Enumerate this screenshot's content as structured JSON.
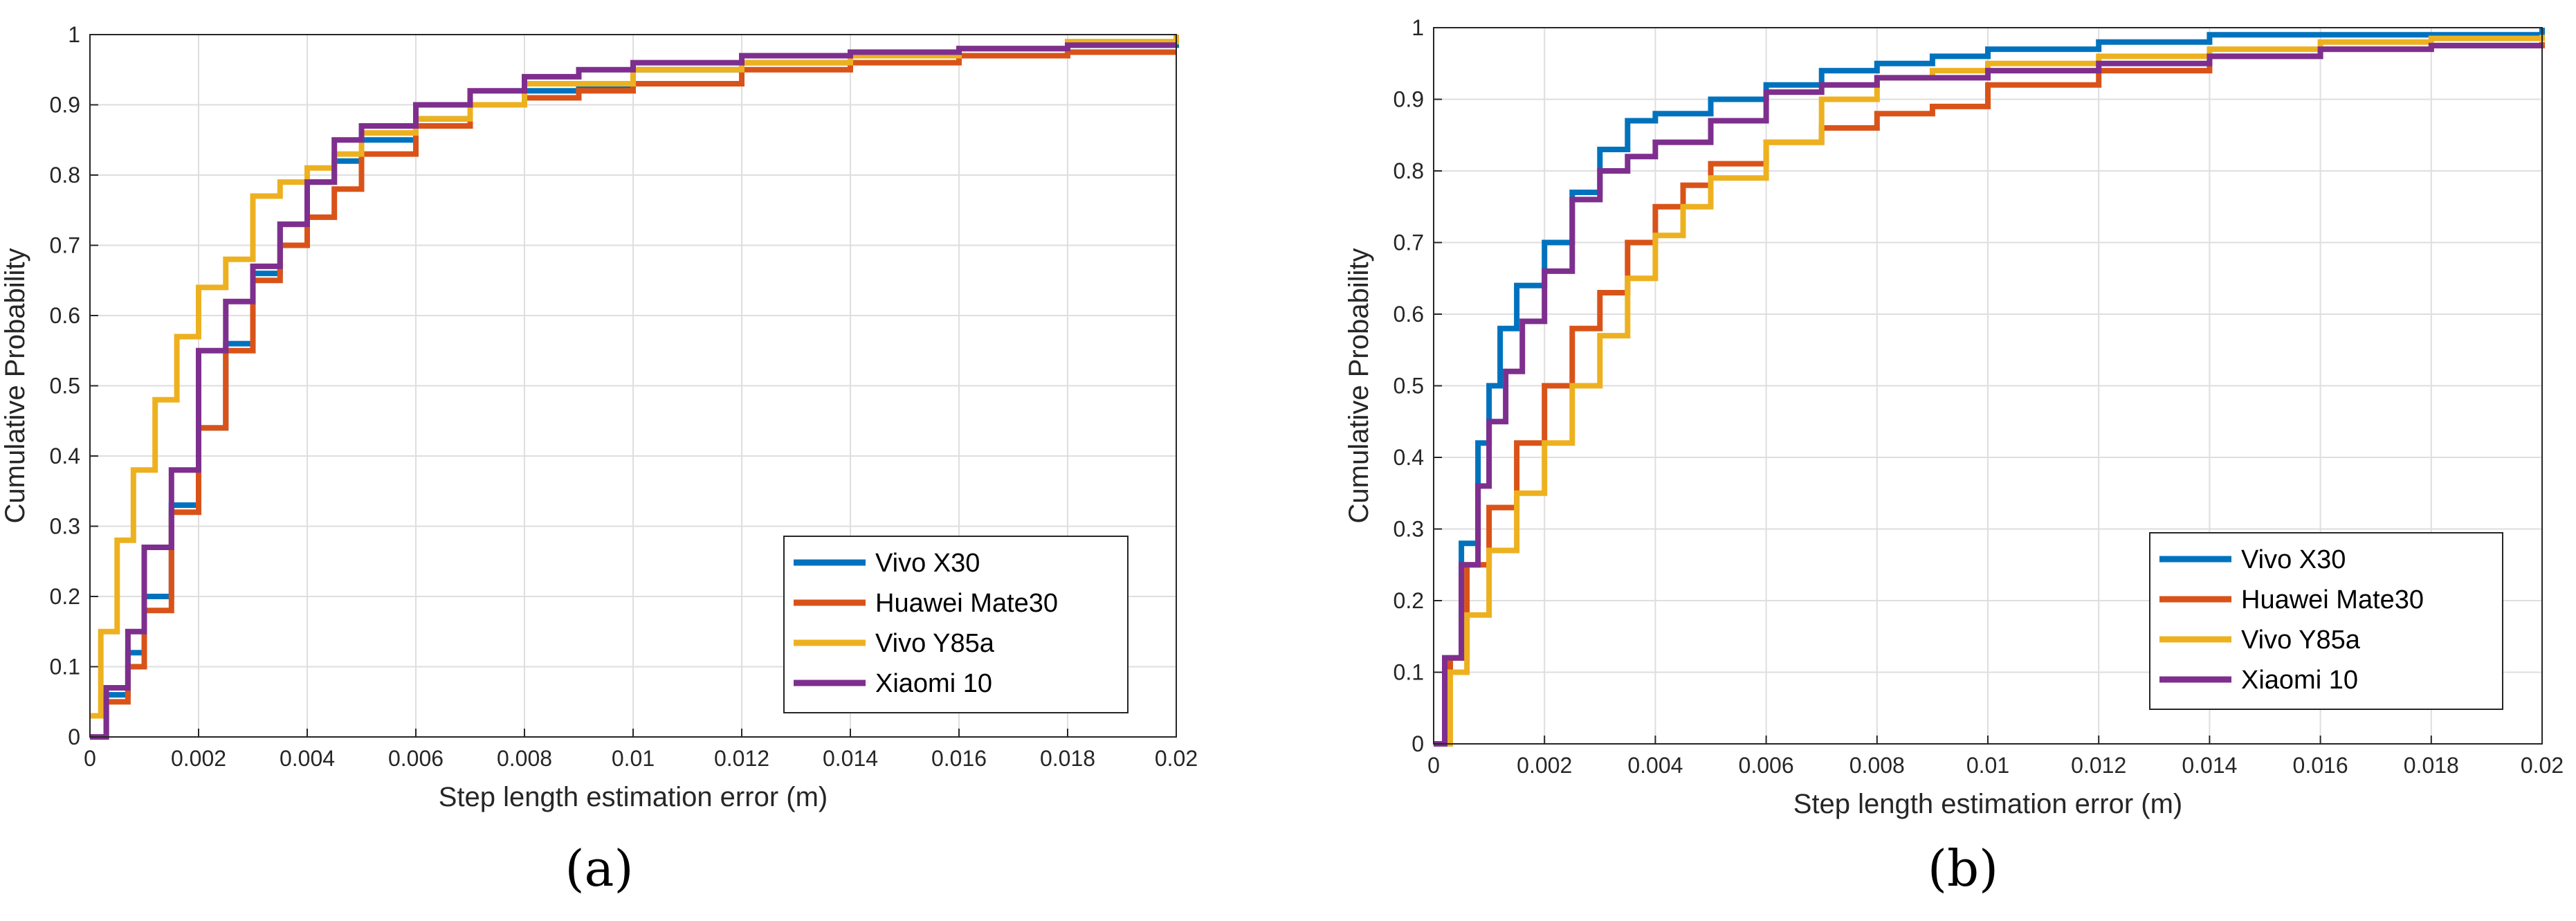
{
  "colors": {
    "Vivo X30": "#0072BD",
    "Huawei Mate30": "#D95319",
    "Vivo Y85a": "#EDB120",
    "Xiaomi 10": "#7E2F8E"
  },
  "chart_data": [
    {
      "type": "line",
      "panel_label": "(a)",
      "xlabel": "Step length estimation error (m)",
      "ylabel": "Cumulative Probability",
      "xlim": [
        0,
        0.02
      ],
      "ylim": [
        0,
        1
      ],
      "grid": true,
      "xticks": [
        "0",
        "0.002",
        "0.004",
        "0.006",
        "0.008",
        "0.01",
        "0.012",
        "0.014",
        "0.016",
        "0.018",
        "0.02"
      ],
      "yticks": [
        "0",
        "0.1",
        "0.2",
        "0.3",
        "0.4",
        "0.5",
        "0.6",
        "0.7",
        "0.8",
        "0.9",
        "1"
      ],
      "legend_location": "lower-right",
      "series": [
        {
          "name": "Vivo X30",
          "x": [
            0,
            0.0003,
            0.0007,
            0.001,
            0.0015,
            0.002,
            0.0025,
            0.003,
            0.0035,
            0.004,
            0.0045,
            0.005,
            0.006,
            0.007,
            0.008,
            0.009,
            0.01,
            0.012,
            0.014,
            0.016,
            0.018,
            0.02
          ],
          "y": [
            0,
            0.06,
            0.12,
            0.2,
            0.33,
            0.44,
            0.56,
            0.66,
            0.73,
            0.79,
            0.82,
            0.85,
            0.88,
            0.9,
            0.92,
            0.925,
            0.95,
            0.96,
            0.97,
            0.98,
            0.985,
            0.99
          ]
        },
        {
          "name": "Huawei Mate30",
          "x": [
            0,
            0.0003,
            0.0007,
            0.001,
            0.0015,
            0.002,
            0.0025,
            0.003,
            0.0035,
            0.004,
            0.0045,
            0.005,
            0.006,
            0.007,
            0.008,
            0.009,
            0.01,
            0.012,
            0.014,
            0.016,
            0.018,
            0.02
          ],
          "y": [
            0,
            0.05,
            0.1,
            0.18,
            0.32,
            0.44,
            0.55,
            0.65,
            0.7,
            0.74,
            0.78,
            0.83,
            0.87,
            0.9,
            0.91,
            0.92,
            0.93,
            0.95,
            0.96,
            0.97,
            0.975,
            0.975
          ]
        },
        {
          "name": "Vivo Y85a",
          "x": [
            0,
            0.0002,
            0.0005,
            0.0008,
            0.0012,
            0.0016,
            0.002,
            0.0025,
            0.003,
            0.0035,
            0.004,
            0.0045,
            0.005,
            0.006,
            0.007,
            0.008,
            0.01,
            0.012,
            0.014,
            0.016,
            0.018,
            0.02
          ],
          "y": [
            0.03,
            0.15,
            0.28,
            0.38,
            0.48,
            0.57,
            0.64,
            0.68,
            0.77,
            0.79,
            0.81,
            0.83,
            0.86,
            0.88,
            0.9,
            0.93,
            0.95,
            0.96,
            0.97,
            0.98,
            0.99,
            1.0
          ]
        },
        {
          "name": "Xiaomi 10",
          "x": [
            0,
            0.0003,
            0.0007,
            0.001,
            0.0015,
            0.002,
            0.0025,
            0.003,
            0.0035,
            0.004,
            0.0045,
            0.005,
            0.006,
            0.007,
            0.008,
            0.009,
            0.01,
            0.012,
            0.014,
            0.016,
            0.018,
            0.02
          ],
          "y": [
            0,
            0.07,
            0.15,
            0.27,
            0.38,
            0.55,
            0.62,
            0.67,
            0.73,
            0.79,
            0.85,
            0.87,
            0.9,
            0.92,
            0.94,
            0.95,
            0.96,
            0.97,
            0.975,
            0.98,
            0.985,
            0.985
          ]
        }
      ]
    },
    {
      "type": "line",
      "panel_label": "(b)",
      "xlabel": "Step length estimation error (m)",
      "ylabel": "Cumulative Probability",
      "xlim": [
        0,
        0.02
      ],
      "ylim": [
        0,
        1
      ],
      "grid": true,
      "xticks": [
        "0",
        "0.002",
        "0.004",
        "0.006",
        "0.008",
        "0.01",
        "0.012",
        "0.014",
        "0.016",
        "0.018",
        "0.02"
      ],
      "yticks": [
        "0",
        "0.1",
        "0.2",
        "0.3",
        "0.4",
        "0.5",
        "0.6",
        "0.7",
        "0.8",
        "0.9",
        "1"
      ],
      "legend_location": "lower-right",
      "series": [
        {
          "name": "Vivo X30",
          "x": [
            0,
            0.0002,
            0.0005,
            0.0008,
            0.001,
            0.0012,
            0.0015,
            0.002,
            0.0025,
            0.003,
            0.0035,
            0.004,
            0.005,
            0.006,
            0.007,
            0.008,
            0.009,
            0.01,
            0.012,
            0.014,
            0.016,
            0.02
          ],
          "y": [
            0,
            0.12,
            0.28,
            0.42,
            0.5,
            0.58,
            0.64,
            0.7,
            0.77,
            0.83,
            0.87,
            0.88,
            0.9,
            0.92,
            0.94,
            0.95,
            0.96,
            0.97,
            0.98,
            0.99,
            0.99,
            1.0
          ]
        },
        {
          "name": "Huawei Mate30",
          "x": [
            0,
            0.0003,
            0.0006,
            0.001,
            0.0015,
            0.002,
            0.0025,
            0.003,
            0.0035,
            0.004,
            0.0045,
            0.005,
            0.006,
            0.007,
            0.008,
            0.009,
            0.01,
            0.012,
            0.014,
            0.016,
            0.018,
            0.02
          ],
          "y": [
            0,
            0.12,
            0.25,
            0.33,
            0.42,
            0.5,
            0.58,
            0.63,
            0.7,
            0.75,
            0.78,
            0.81,
            0.84,
            0.86,
            0.88,
            0.89,
            0.92,
            0.94,
            0.96,
            0.97,
            0.975,
            0.98
          ]
        },
        {
          "name": "Vivo Y85a",
          "x": [
            0,
            0.0003,
            0.0006,
            0.001,
            0.0015,
            0.002,
            0.0025,
            0.003,
            0.0035,
            0.004,
            0.0045,
            0.005,
            0.006,
            0.007,
            0.008,
            0.009,
            0.01,
            0.012,
            0.014,
            0.016,
            0.018,
            0.02
          ],
          "y": [
            0,
            0.1,
            0.18,
            0.27,
            0.35,
            0.42,
            0.5,
            0.57,
            0.65,
            0.71,
            0.75,
            0.79,
            0.84,
            0.9,
            0.93,
            0.94,
            0.95,
            0.96,
            0.97,
            0.98,
            0.985,
            0.99
          ]
        },
        {
          "name": "Xiaomi 10",
          "x": [
            0,
            0.0002,
            0.0005,
            0.0008,
            0.001,
            0.0013,
            0.0016,
            0.002,
            0.0025,
            0.003,
            0.0035,
            0.004,
            0.005,
            0.006,
            0.007,
            0.008,
            0.01,
            0.012,
            0.014,
            0.016,
            0.018,
            0.02
          ],
          "y": [
            0,
            0.12,
            0.25,
            0.36,
            0.45,
            0.52,
            0.59,
            0.66,
            0.76,
            0.8,
            0.82,
            0.84,
            0.87,
            0.91,
            0.92,
            0.93,
            0.94,
            0.95,
            0.96,
            0.97,
            0.975,
            0.975
          ]
        }
      ]
    }
  ]
}
